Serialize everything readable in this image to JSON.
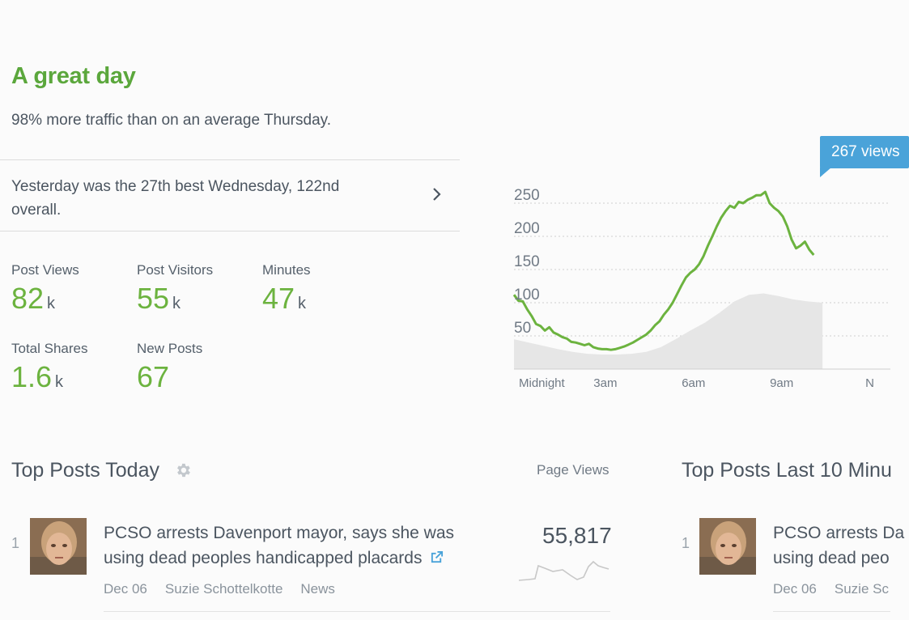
{
  "summary": {
    "headline": "A great day",
    "subline": "98% more traffic than on an average Thursday.",
    "yesterday": "Yesterday was the 27th best Wednesday, 122nd overall."
  },
  "stats": [
    {
      "label": "Post Views",
      "value": "82",
      "unit": "k"
    },
    {
      "label": "Post Visitors",
      "value": "55",
      "unit": "k"
    },
    {
      "label": "Minutes",
      "value": "47",
      "unit": "k"
    },
    {
      "label": "Total Shares",
      "value": "1.6",
      "unit": "k"
    },
    {
      "label": "New Posts",
      "value": "67",
      "unit": ""
    }
  ],
  "colors": {
    "accent_green": "#6cb33f",
    "headline_green": "#5ba73c",
    "tooltip_blue": "#4aa3d9",
    "baseline_gray": "#e6e6e6"
  },
  "chart_data": {
    "type": "line",
    "y_ticks": [
      "250",
      "200",
      "150",
      "100",
      "50"
    ],
    "x_ticks": [
      "Midnight",
      "3am",
      "6am",
      "9am",
      "N"
    ],
    "ylim": [
      0,
      275
    ],
    "grid": true,
    "tooltip": "267 views",
    "series": [
      {
        "values": [
          [
            0,
            112
          ],
          [
            0.15,
            103
          ],
          [
            0.3,
            102
          ],
          [
            0.45,
            90
          ],
          [
            0.6,
            80
          ],
          [
            0.75,
            68
          ],
          [
            0.9,
            65
          ],
          [
            1.05,
            58
          ],
          [
            1.2,
            63
          ],
          [
            1.35,
            55
          ],
          [
            1.5,
            52
          ],
          [
            1.65,
            48
          ],
          [
            1.8,
            46
          ],
          [
            1.95,
            41
          ],
          [
            2.1,
            40
          ],
          [
            2.25,
            38
          ],
          [
            2.4,
            36
          ],
          [
            2.55,
            38
          ],
          [
            2.7,
            33
          ],
          [
            2.85,
            31
          ],
          [
            3.0,
            30
          ],
          [
            3.15,
            30
          ],
          [
            3.3,
            29
          ],
          [
            3.45,
            30
          ],
          [
            3.6,
            32
          ],
          [
            3.75,
            34
          ],
          [
            3.9,
            37
          ],
          [
            4.05,
            40
          ],
          [
            4.2,
            44
          ],
          [
            4.35,
            48
          ],
          [
            4.5,
            52
          ],
          [
            4.65,
            58
          ],
          [
            4.8,
            66
          ],
          [
            4.95,
            72
          ],
          [
            5.1,
            82
          ],
          [
            5.25,
            90
          ],
          [
            5.4,
            100
          ],
          [
            5.55,
            113
          ],
          [
            5.7,
            126
          ],
          [
            5.85,
            138
          ],
          [
            6.0,
            145
          ],
          [
            6.15,
            150
          ],
          [
            6.3,
            158
          ],
          [
            6.45,
            170
          ],
          [
            6.6,
            186
          ],
          [
            6.75,
            200
          ],
          [
            6.9,
            215
          ],
          [
            7.05,
            228
          ],
          [
            7.2,
            238
          ],
          [
            7.35,
            246
          ],
          [
            7.5,
            243
          ],
          [
            7.65,
            252
          ],
          [
            7.8,
            250
          ],
          [
            7.95,
            255
          ],
          [
            8.1,
            258
          ],
          [
            8.25,
            262
          ],
          [
            8.4,
            262
          ],
          [
            8.55,
            267
          ],
          [
            8.7,
            250
          ],
          [
            8.85,
            243
          ],
          [
            9.0,
            238
          ],
          [
            9.15,
            230
          ],
          [
            9.3,
            215
          ],
          [
            9.45,
            195
          ],
          [
            9.6,
            182
          ],
          [
            9.75,
            186
          ],
          [
            9.9,
            192
          ],
          [
            10.05,
            180
          ],
          [
            10.2,
            172
          ]
        ]
      },
      {
        "values": [
          [
            0,
            45
          ],
          [
            0.5,
            40
          ],
          [
            1.0,
            35
          ],
          [
            1.5,
            30
          ],
          [
            2.0,
            26
          ],
          [
            2.5,
            23
          ],
          [
            3.0,
            22
          ],
          [
            3.5,
            22
          ],
          [
            4.0,
            23
          ],
          [
            4.5,
            26
          ],
          [
            5.0,
            33
          ],
          [
            5.5,
            45
          ],
          [
            6.0,
            58
          ],
          [
            6.5,
            70
          ],
          [
            7.0,
            85
          ],
          [
            7.5,
            102
          ],
          [
            8.0,
            112
          ],
          [
            8.5,
            114
          ],
          [
            9.0,
            110
          ],
          [
            9.5,
            105
          ],
          [
            10.0,
            102
          ],
          [
            10.5,
            100
          ]
        ]
      }
    ]
  },
  "top_posts_today": {
    "title": "Top Posts Today",
    "column_header": "Page Views",
    "posts": [
      {
        "rank": "1",
        "title": "PCSO arrests Davenport mayor, says she was using dead peoples handicapped placards",
        "date": "Dec 06",
        "author": "Suzie Schottelkotte",
        "category": "News",
        "views": "55,817"
      }
    ]
  },
  "top_posts_last10": {
    "title": "Top Posts Last 10 Minu",
    "posts": [
      {
        "rank": "1",
        "title_line1": "PCSO arrests Da",
        "title_line2": "using dead peo",
        "date": "Dec 06",
        "author": "Suzie Sc"
      }
    ]
  }
}
